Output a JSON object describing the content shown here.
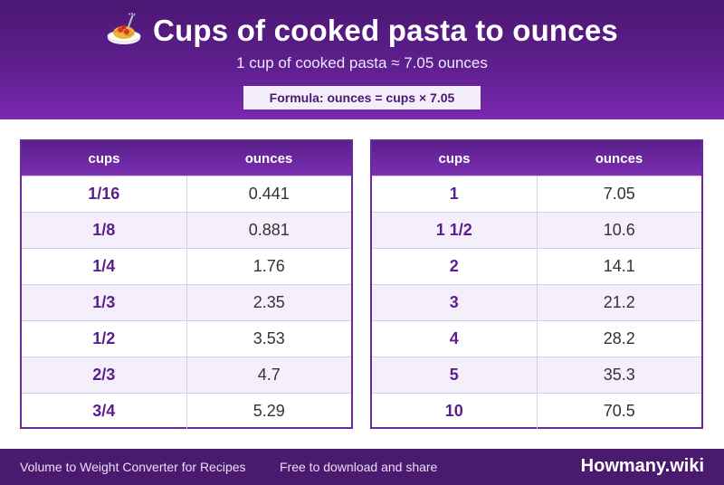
{
  "header": {
    "title": "Cups of cooked pasta to ounces",
    "subtitle": "1 cup of cooked pasta ≈ 7.05 ounces",
    "formula": "Formula: ounces = cups × 7.05",
    "icon": "spaghetti-icon"
  },
  "tables": {
    "left": {
      "col_cups": "cups",
      "col_ounces": "ounces",
      "rows": [
        {
          "cups": "1/16",
          "ounces": "0.441"
        },
        {
          "cups": "1/8",
          "ounces": "0.881"
        },
        {
          "cups": "1/4",
          "ounces": "1.76"
        },
        {
          "cups": "1/3",
          "ounces": "2.35"
        },
        {
          "cups": "1/2",
          "ounces": "3.53"
        },
        {
          "cups": "2/3",
          "ounces": "4.7"
        },
        {
          "cups": "3/4",
          "ounces": "5.29"
        }
      ]
    },
    "right": {
      "col_cups": "cups",
      "col_ounces": "ounces",
      "rows": [
        {
          "cups": "1",
          "ounces": "7.05"
        },
        {
          "cups": "1 1/2",
          "ounces": "10.6"
        },
        {
          "cups": "2",
          "ounces": "14.1"
        },
        {
          "cups": "3",
          "ounces": "21.2"
        },
        {
          "cups": "4",
          "ounces": "28.2"
        },
        {
          "cups": "5",
          "ounces": "35.3"
        },
        {
          "cups": "10",
          "ounces": "70.5"
        }
      ]
    }
  },
  "footer": {
    "left_text": "Volume to Weight Converter for Recipes",
    "middle_text": "Free to download and share",
    "brand": "Howmany.wiki"
  },
  "colors": {
    "header_purple": "#5e1f8e",
    "accent_purple": "#5a1f8a",
    "footer_purple": "#4a1a6e"
  }
}
